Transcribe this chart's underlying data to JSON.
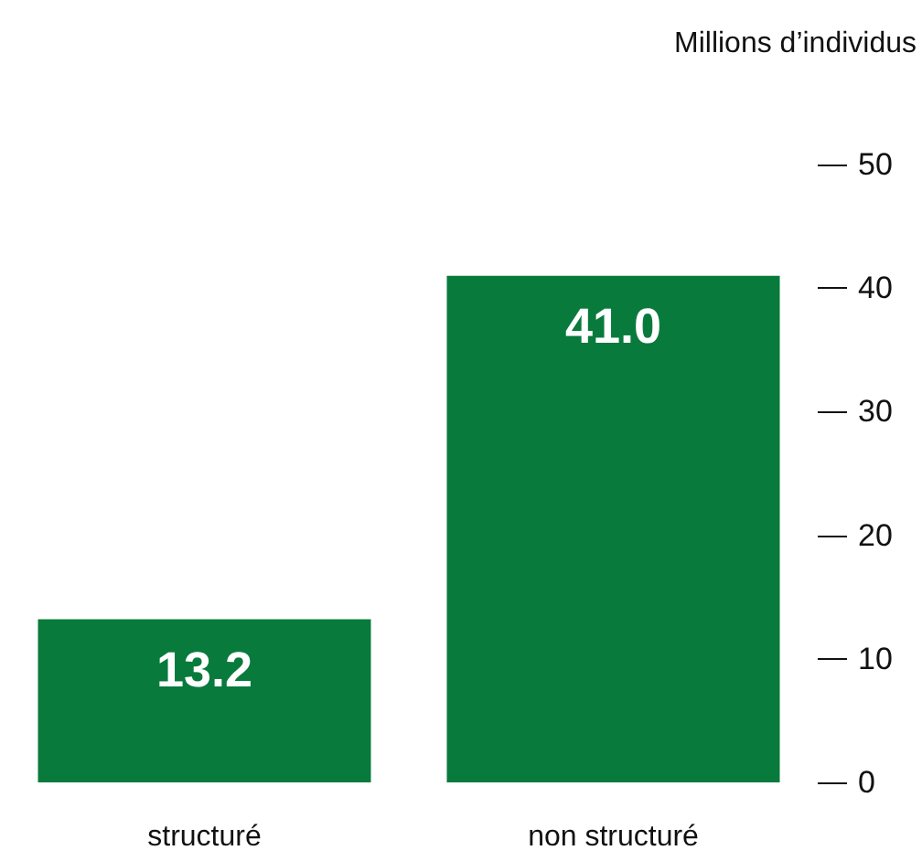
{
  "chart_data": {
    "type": "bar",
    "ylabel": "Millions d’individus",
    "categories": [
      "structuré",
      "non structuré"
    ],
    "values": [
      13.2,
      41.0
    ],
    "value_labels": [
      "13.2",
      "41.0"
    ],
    "color": "#087a3c",
    "ylim": [
      0,
      50
    ],
    "yticks": [
      0,
      10,
      20,
      30,
      40,
      50
    ]
  }
}
